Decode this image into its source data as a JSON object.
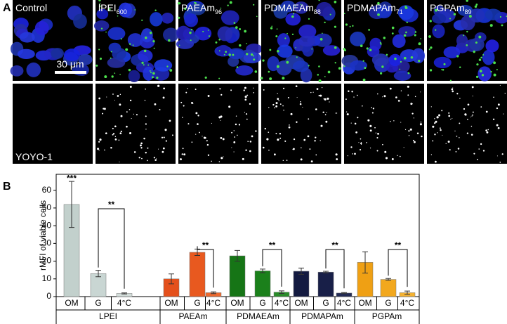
{
  "figure": {
    "panel_a": {
      "label": "A",
      "columns": [
        {
          "title": "Control"
        },
        {
          "title": "lPEI",
          "subscript": "600"
        },
        {
          "title": "PAEAm",
          "subscript": "96"
        },
        {
          "title": "PDMAEAm",
          "subscript": "88"
        },
        {
          "title": "PDMAPAm",
          "subscript": "71"
        },
        {
          "title": "PGPAm",
          "subscript": "89"
        }
      ],
      "scale_bar": "30 μm",
      "stain": "YOYO-1"
    },
    "panel_b": {
      "label": "B"
    }
  },
  "chart_data": {
    "type": "grouped_bar",
    "ylabel": "rMFI of viable cells",
    "ylim": [
      0,
      69
    ],
    "yticks": [
      0,
      10,
      20,
      30,
      40,
      50,
      60
    ],
    "subcategories": [
      "OM",
      "G",
      "4°C"
    ],
    "groups": [
      {
        "name": "LPEI",
        "colors": [
          "#c2d0cc",
          "#c9d6d3",
          "#d3ddda"
        ],
        "values": [
          52,
          13,
          1.8
        ],
        "errors": [
          13,
          1.8,
          0.3
        ],
        "top_label": "***",
        "bracket_label": "**"
      },
      {
        "name": "PAEAm",
        "colors": [
          "#e4501c",
          "#e8591f",
          "#ec6a30"
        ],
        "values": [
          10,
          25,
          2.2
        ],
        "errors": [
          2.8,
          1.8,
          0.5
        ],
        "bracket_label": "**"
      },
      {
        "name": "PDMAEAm",
        "colors": [
          "#167516",
          "#1b801b",
          "#2a8c2a"
        ],
        "values": [
          23,
          14.5,
          2.5
        ],
        "errors": [
          3,
          1,
          0.7
        ],
        "bracket_label": "**"
      },
      {
        "name": "PDMAPAm",
        "colors": [
          "#131a40",
          "#181f48",
          "#222a55"
        ],
        "values": [
          14.3,
          13.8,
          2
        ],
        "errors": [
          1.8,
          0.5,
          0.3
        ],
        "bracket_label": "**"
      },
      {
        "name": "PGPAm",
        "colors": [
          "#efa014",
          "#f2a81e",
          "#f4b232"
        ],
        "values": [
          19.3,
          9.7,
          2.2
        ],
        "errors": [
          6,
          0.5,
          0.9
        ],
        "bracket_label": "**"
      }
    ]
  }
}
